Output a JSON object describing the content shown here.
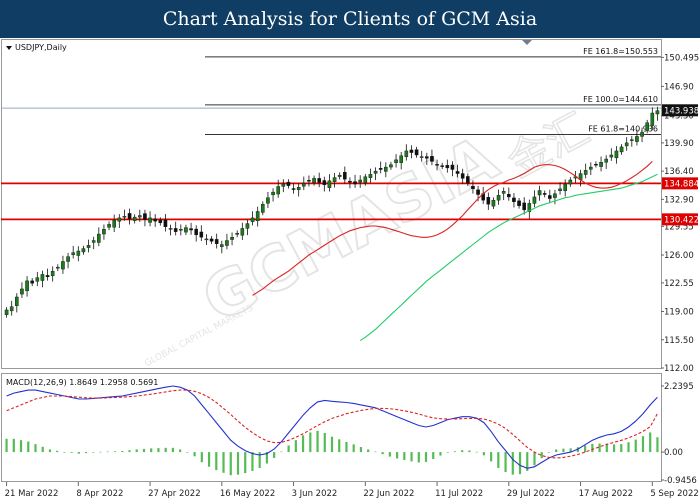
{
  "header": {
    "title": "Chart Analysis for Clients of GCM Asia"
  },
  "watermark": {
    "brand": "GCMASIA",
    "sub": "GLOBAL CAPITAL MARKETS",
    "logo": "金汇"
  },
  "colors": {
    "banner": "#0f3d63",
    "bull": "#1b7a1b",
    "ma_fast": "#dd2222",
    "ma_slow": "#22cc66",
    "macd_line": "#2233cc",
    "signal_line": "#dd2222",
    "histogram": "#55bb55",
    "level": "#dd0000"
  },
  "chart_data": [
    {
      "type": "candlestick",
      "title": "USDJPY,Daily",
      "ylim": [
        112.0,
        152.65
      ],
      "y_ticks": [
        "150.495",
        "146.90",
        "143.30",
        "139.90",
        "136.40",
        "132.90",
        "129.55",
        "126.00",
        "122.55",
        "119.00",
        "115.50",
        "112.00"
      ],
      "x_ticks": [
        "21 Mar 2022",
        "8 Apr 2022",
        "27 Apr 2022",
        "16 May 2022",
        "3 Jun 2022",
        "22 Jun 2022",
        "11 Jul 2022",
        "29 Jul 2022",
        "17 Aug 2022",
        "5 Sep 2022"
      ],
      "x_tick_index": [
        0,
        14,
        28,
        42,
        56,
        70,
        84,
        98,
        112,
        126
      ],
      "closes": [
        119.2,
        119.6,
        120.8,
        121.8,
        122.8,
        122.5,
        123.2,
        123.6,
        123.3,
        124.0,
        124.5,
        125.2,
        125.8,
        126.3,
        126.5,
        126.8,
        127.2,
        127.8,
        128.6,
        129.2,
        129.8,
        130.3,
        130.6,
        130.8,
        130.5,
        130.7,
        130.9,
        130.4,
        130.6,
        130.2,
        130.0,
        129.5,
        129.3,
        128.9,
        129.2,
        129.4,
        129.1,
        128.5,
        128.2,
        128.0,
        127.7,
        127.4,
        127.3,
        127.8,
        128.2,
        128.7,
        129.3,
        129.9,
        130.6,
        131.4,
        132.3,
        133.1,
        133.8,
        134.5,
        134.8,
        134.6,
        134.2,
        134.4,
        134.9,
        135.2,
        135.5,
        135.0,
        134.7,
        135.2,
        135.6,
        135.9,
        135.4,
        135.1,
        134.8,
        135.3,
        135.7,
        136.0,
        136.4,
        136.6,
        136.9,
        137.2,
        137.8,
        138.3,
        138.9,
        138.7,
        138.4,
        138.2,
        138.0,
        137.6,
        137.2,
        137.0,
        136.8,
        136.6,
        136.1,
        135.5,
        134.9,
        134.2,
        133.5,
        132.8,
        132.3,
        132.8,
        133.4,
        133.9,
        133.2,
        132.6,
        132.1,
        131.6,
        132.4,
        133.2,
        134.0,
        133.5,
        133.0,
        133.6,
        134.2,
        134.8,
        135.3,
        135.7,
        136.1,
        136.5,
        136.9,
        137.2,
        137.5,
        137.9,
        138.4,
        138.9,
        139.4,
        139.9,
        140.3,
        140.7,
        141.2,
        142.4,
        143.6,
        143.9
      ],
      "ma_fast": [
        121.0,
        121.4,
        121.8,
        122.3,
        122.8,
        123.2,
        123.6,
        124.0,
        124.5,
        125.0,
        125.5,
        126.0,
        126.4,
        126.8,
        127.2,
        127.6,
        128.0,
        128.4,
        128.7,
        129.0,
        129.2,
        129.4,
        129.5,
        129.6,
        129.6,
        129.5,
        129.4,
        129.2,
        129.0,
        128.8,
        128.6,
        128.4,
        128.3,
        128.2,
        128.2,
        128.3,
        128.5,
        128.8,
        129.2,
        129.7,
        130.3,
        130.9,
        131.6,
        132.3,
        133.0,
        133.6,
        134.1,
        134.5,
        134.8,
        135.0,
        135.3,
        135.5,
        135.8,
        136.1,
        136.5,
        136.9,
        137.1,
        137.2,
        137.2,
        137.1,
        136.9,
        136.6,
        136.2,
        135.8,
        135.3,
        134.9,
        134.6,
        134.4,
        134.3,
        134.3,
        134.4,
        134.6,
        134.9,
        135.2,
        135.6,
        136.0,
        136.5,
        137.0,
        137.6
      ],
      "ma_fast_start": 48,
      "ma_slow": [
        115.4,
        115.8,
        116.3,
        116.8,
        117.4,
        118.0,
        118.6,
        119.2,
        119.8,
        120.4,
        121.0,
        121.6,
        122.2,
        122.8,
        123.3,
        123.8,
        124.3,
        124.8,
        125.3,
        125.8,
        126.3,
        126.8,
        127.3,
        127.8,
        128.3,
        128.8,
        129.2,
        129.6,
        130.0,
        130.3,
        130.6,
        130.9,
        131.2,
        131.5,
        131.8,
        132.1,
        132.3,
        132.5,
        132.7,
        132.9,
        133.1,
        133.2,
        133.4,
        133.5,
        133.6,
        133.7,
        133.8,
        133.9,
        134.0,
        134.1,
        134.2,
        134.3,
        134.5,
        134.7,
        134.9,
        135.1,
        135.4,
        135.7,
        136.0
      ],
      "ma_slow_start": 69,
      "levels": [
        {
          "name": "FE 161.8=150.553",
          "value": 150.553,
          "color": "#333333",
          "label": "FE 161.8=150.553"
        },
        {
          "name": "FE 100.0=144.610",
          "value": 144.61,
          "color": "#333333",
          "label": "FE 100.0=144.610"
        },
        {
          "name": "FE 61.8=140.936",
          "value": 140.936,
          "color": "#333333",
          "label": "FE 61.8=140.936"
        },
        {
          "name": "134.884",
          "value": 134.884,
          "color": "#dd0000",
          "label": ""
        },
        {
          "name": "130.422",
          "value": 130.422,
          "color": "#dd0000",
          "label": ""
        }
      ],
      "price_tags": [
        {
          "text": "143.938",
          "value": 143.938,
          "bg": "#111111"
        },
        {
          "text": "134.884",
          "value": 134.884,
          "bg": "#dd0000"
        },
        {
          "text": "130.422",
          "value": 130.422,
          "bg": "#dd0000"
        }
      ]
    },
    {
      "type": "macd",
      "title": "MACD(12,26,9) 1.8649 1.2958 0.5691",
      "ylim": [
        -0.9456,
        2.2395
      ],
      "y_ticks": [
        "2.2395",
        "0.00",
        "-0.9456"
      ],
      "macd": [
        1.9,
        2.0,
        2.05,
        2.1,
        2.1,
        2.05,
        2.0,
        1.95,
        1.9,
        1.85,
        1.8,
        1.8,
        1.82,
        1.84,
        1.86,
        1.88,
        1.9,
        1.95,
        2.0,
        2.05,
        2.1,
        2.15,
        2.2,
        2.24,
        2.2,
        2.1,
        1.9,
        1.6,
        1.3,
        1.0,
        0.7,
        0.4,
        0.2,
        0.05,
        -0.05,
        -0.1,
        -0.05,
        0.1,
        0.35,
        0.65,
        0.95,
        1.25,
        1.5,
        1.7,
        1.75,
        1.72,
        1.7,
        1.68,
        1.65,
        1.6,
        1.55,
        1.5,
        1.4,
        1.3,
        1.2,
        1.1,
        1.0,
        0.9,
        0.85,
        0.9,
        1.0,
        1.1,
        1.15,
        1.2,
        1.2,
        1.15,
        1.0,
        0.7,
        0.35,
        0.05,
        -0.25,
        -0.45,
        -0.55,
        -0.5,
        -0.35,
        -0.2,
        -0.1,
        -0.05,
        0.0,
        0.1,
        0.25,
        0.4,
        0.5,
        0.58,
        0.62,
        0.7,
        0.85,
        1.05,
        1.3,
        1.6,
        1.86
      ],
      "signal": [
        1.4,
        1.5,
        1.6,
        1.7,
        1.8,
        1.85,
        1.9,
        1.9,
        1.9,
        1.88,
        1.86,
        1.84,
        1.83,
        1.83,
        1.84,
        1.85,
        1.86,
        1.88,
        1.9,
        1.93,
        1.96,
        2.0,
        2.04,
        2.08,
        2.1,
        2.1,
        2.06,
        1.98,
        1.85,
        1.68,
        1.48,
        1.27,
        1.05,
        0.84,
        0.66,
        0.5,
        0.38,
        0.32,
        0.33,
        0.4,
        0.5,
        0.62,
        0.76,
        0.9,
        1.03,
        1.14,
        1.22,
        1.3,
        1.36,
        1.41,
        1.45,
        1.48,
        1.48,
        1.47,
        1.44,
        1.4,
        1.35,
        1.29,
        1.22,
        1.16,
        1.13,
        1.12,
        1.12,
        1.13,
        1.14,
        1.14,
        1.12,
        1.05,
        0.95,
        0.8,
        0.6,
        0.38,
        0.16,
        0.0,
        -0.12,
        -0.18,
        -0.2,
        -0.18,
        -0.14,
        -0.08,
        0.0,
        0.09,
        0.18,
        0.26,
        0.33,
        0.4,
        0.48,
        0.58,
        0.7,
        0.86,
        1.3
      ],
      "macd_start": 0
    }
  ]
}
